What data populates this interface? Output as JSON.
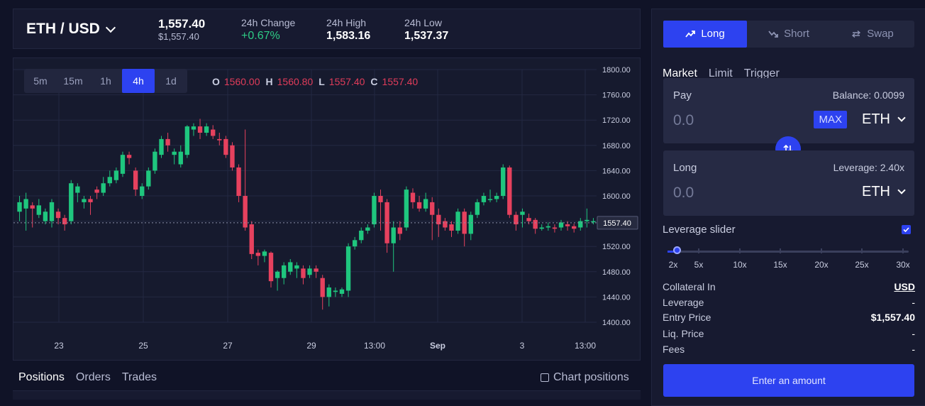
{
  "header": {
    "pair": "ETH / USD",
    "price": "1,557.40",
    "price_usd": "$1,557.40",
    "change_label": "24h Change",
    "change_value": "+0.67%",
    "high_label": "24h High",
    "high_value": "1,583.16",
    "low_label": "24h Low",
    "low_value": "1,537.37"
  },
  "intervals": [
    "5m",
    "15m",
    "1h",
    "4h",
    "1d"
  ],
  "active_interval": "4h",
  "ohlc": {
    "o_label": "O",
    "o": "1560.00",
    "h_label": "H",
    "h": "1560.80",
    "l_label": "L",
    "l": "1557.40",
    "c_label": "C",
    "c": "1557.40"
  },
  "chart_data": {
    "type": "candlestick",
    "y_ticks": [
      "1800.00",
      "1760.00",
      "1720.00",
      "1680.00",
      "1640.00",
      "1600.00",
      "1560.00",
      "1520.00",
      "1480.00",
      "1440.00",
      "1400.00"
    ],
    "x_ticks": [
      "23",
      "25",
      "27",
      "29",
      "13:00",
      "Sep",
      "3",
      "13:00"
    ],
    "ylim": [
      1400,
      1800
    ],
    "current_price_label": "1557.40",
    "current_price": 1557.4,
    "colors": {
      "up": "#1fc67e",
      "down": "#e6415e",
      "grid": "#232842",
      "axis_text": "#c9cde0"
    },
    "candles": [
      [
        1575,
        1590,
        1560,
        1600
      ],
      [
        1580,
        1595,
        1545,
        1605
      ],
      [
        1585,
        1580,
        1550,
        1590
      ],
      [
        1570,
        1585,
        1565,
        1595
      ],
      [
        1560,
        1575,
        1555,
        1580
      ],
      [
        1560,
        1590,
        1550,
        1595
      ],
      [
        1575,
        1565,
        1555,
        1580
      ],
      [
        1565,
        1555,
        1545,
        1570
      ],
      [
        1560,
        1620,
        1555,
        1625
      ],
      [
        1605,
        1615,
        1590,
        1620
      ],
      [
        1590,
        1595,
        1580,
        1600
      ],
      [
        1595,
        1590,
        1570,
        1600
      ],
      [
        1610,
        1605,
        1595,
        1615
      ],
      [
        1605,
        1620,
        1600,
        1630
      ],
      [
        1620,
        1630,
        1615,
        1640
      ],
      [
        1625,
        1640,
        1620,
        1645
      ],
      [
        1635,
        1665,
        1630,
        1670
      ],
      [
        1665,
        1660,
        1650,
        1670
      ],
      [
        1640,
        1610,
        1600,
        1645
      ],
      [
        1600,
        1615,
        1595,
        1620
      ],
      [
        1615,
        1640,
        1610,
        1645
      ],
      [
        1640,
        1670,
        1635,
        1675
      ],
      [
        1665,
        1690,
        1660,
        1695
      ],
      [
        1690,
        1680,
        1670,
        1700
      ],
      [
        1665,
        1670,
        1650,
        1675
      ],
      [
        1650,
        1670,
        1645,
        1680
      ],
      [
        1665,
        1710,
        1660,
        1712
      ],
      [
        1705,
        1710,
        1695,
        1715
      ],
      [
        1710,
        1700,
        1690,
        1722
      ],
      [
        1700,
        1710,
        1695,
        1715
      ],
      [
        1705,
        1695,
        1690,
        1712
      ],
      [
        1690,
        1688,
        1680,
        1700
      ],
      [
        1690,
        1665,
        1660,
        1695
      ],
      [
        1680,
        1645,
        1640,
        1685
      ],
      [
        1645,
        1600,
        1590,
        1650
      ],
      [
        1600,
        1550,
        1545,
        1705
      ],
      [
        1555,
        1508,
        1500,
        1560
      ],
      [
        1510,
        1505,
        1490,
        1515
      ],
      [
        1505,
        1512,
        1495,
        1515
      ],
      [
        1510,
        1465,
        1455,
        1512
      ],
      [
        1470,
        1480,
        1450,
        1482
      ],
      [
        1470,
        1490,
        1460,
        1495
      ],
      [
        1480,
        1495,
        1475,
        1500
      ],
      [
        1485,
        1490,
        1470,
        1495
      ],
      [
        1485,
        1470,
        1460,
        1490
      ],
      [
        1475,
        1485,
        1470,
        1490
      ],
      [
        1485,
        1480,
        1470,
        1490
      ],
      [
        1470,
        1440,
        1420,
        1475
      ],
      [
        1440,
        1455,
        1425,
        1460
      ],
      [
        1448,
        1450,
        1440,
        1455
      ],
      [
        1445,
        1452,
        1440,
        1455
      ],
      [
        1450,
        1520,
        1440,
        1525
      ],
      [
        1520,
        1530,
        1515,
        1535
      ],
      [
        1530,
        1545,
        1525,
        1550
      ],
      [
        1545,
        1550,
        1540,
        1555
      ],
      [
        1555,
        1600,
        1550,
        1605
      ],
      [
        1600,
        1590,
        1545,
        1610
      ],
      [
        1590,
        1525,
        1510,
        1595
      ],
      [
        1525,
        1550,
        1480,
        1560
      ],
      [
        1550,
        1540,
        1530,
        1560
      ],
      [
        1550,
        1610,
        1545,
        1615
      ],
      [
        1605,
        1590,
        1580,
        1612
      ],
      [
        1590,
        1580,
        1575,
        1600
      ],
      [
        1580,
        1595,
        1575,
        1605
      ],
      [
        1590,
        1570,
        1530,
        1598
      ],
      [
        1570,
        1555,
        1535,
        1580
      ],
      [
        1560,
        1550,
        1545,
        1565
      ],
      [
        1555,
        1545,
        1535,
        1560
      ],
      [
        1545,
        1575,
        1540,
        1580
      ],
      [
        1575,
        1540,
        1520,
        1580
      ],
      [
        1540,
        1570,
        1530,
        1575
      ],
      [
        1570,
        1590,
        1565,
        1595
      ],
      [
        1590,
        1600,
        1585,
        1605
      ],
      [
        1595,
        1595,
        1590,
        1610
      ],
      [
        1595,
        1600,
        1590,
        1605
      ],
      [
        1600,
        1645,
        1595,
        1650
      ],
      [
        1645,
        1570,
        1565,
        1648
      ],
      [
        1570,
        1555,
        1545,
        1575
      ],
      [
        1570,
        1575,
        1550,
        1580
      ],
      [
        1565,
        1560,
        1555,
        1572
      ],
      [
        1562,
        1548,
        1540,
        1565
      ],
      [
        1548,
        1550,
        1545,
        1555
      ],
      [
        1550,
        1552,
        1545,
        1558
      ],
      [
        1550,
        1548,
        1542,
        1555
      ],
      [
        1550,
        1558,
        1545,
        1562
      ],
      [
        1555,
        1552,
        1545,
        1560
      ],
      [
        1552,
        1548,
        1542,
        1556
      ],
      [
        1550,
        1560,
        1545,
        1565
      ],
      [
        1560,
        1562,
        1550,
        1580
      ],
      [
        1560,
        1560,
        1555,
        1565
      ]
    ]
  },
  "bottom_tabs": [
    "Positions",
    "Orders",
    "Trades"
  ],
  "chart_positions_label": "Chart positions",
  "side_tabs": [
    "Long",
    "Short",
    "Swap"
  ],
  "order_types": [
    "Market",
    "Limit",
    "Trigger"
  ],
  "pay_box": {
    "label": "Pay",
    "balance": "Balance: 0.0099",
    "placeholder": "0.0",
    "max": "MAX",
    "token": "ETH"
  },
  "long_box": {
    "label": "Long",
    "leverage": "Leverage: 2.40x",
    "placeholder": "0.0",
    "token": "ETH"
  },
  "leverage_slider": {
    "label": "Leverage slider",
    "marks": [
      "2x",
      "5x",
      "10x",
      "15x",
      "20x",
      "25x",
      "30x"
    ],
    "value_x": 2.4
  },
  "info": {
    "collateral_label": "Collateral In",
    "collateral_value": "USD",
    "leverage_label": "Leverage",
    "leverage_value": "-",
    "entry_label": "Entry Price",
    "entry_value": "$1,557.40",
    "liq_label": "Liq. Price",
    "liq_value": "-",
    "fees_label": "Fees",
    "fees_value": "-"
  },
  "enter_button": "Enter an amount"
}
